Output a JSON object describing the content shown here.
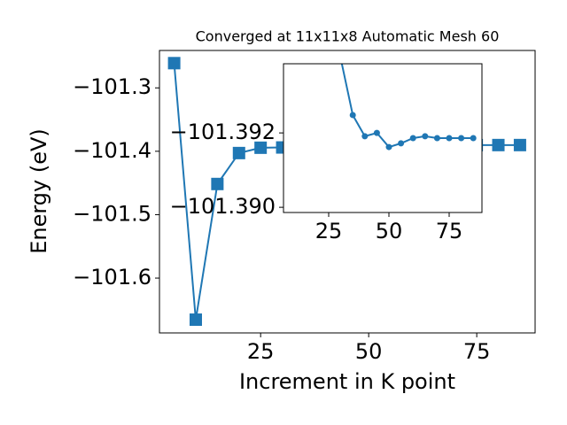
{
  "chart_data": [
    {
      "type": "line",
      "title": "Converged at 11x11x8 Automatic Mesh 60",
      "xlabel": "Increment in K point",
      "ylabel": "Energy (eV)",
      "x": [
        5,
        10,
        15,
        20,
        25,
        30,
        35,
        40,
        45,
        50,
        55,
        60,
        65,
        70,
        75,
        80,
        85
      ],
      "series": [
        {
          "color": "#1f77b4",
          "marker": "square",
          "values": [
            -101.261,
            -101.6656,
            -101.4516,
            -101.4028,
            -101.3944,
            -101.394,
            -101.392,
            -101.391,
            -101.391,
            -101.391,
            -101.391,
            -101.3905,
            -101.3905,
            -101.3903,
            -101.3903,
            -101.3902,
            -101.3902
          ]
        }
      ],
      "xlim": [
        1.6,
        88.5
      ],
      "ylim": [
        -101.6865,
        -101.241
      ],
      "xticks": [
        25,
        50,
        75
      ],
      "yticks": [
        {
          "value": -101.6,
          "label": "−101.6"
        },
        {
          "value": -101.5,
          "label": "−101.5"
        },
        {
          "value": -101.4,
          "label": "−101.4"
        },
        {
          "value": -101.3,
          "label": "−101.3"
        }
      ]
    },
    {
      "type": "line",
      "x": [
        30,
        35,
        40,
        45,
        50,
        55,
        60,
        65,
        70,
        75,
        80,
        85
      ],
      "series": [
        {
          "color": "#1f77b4",
          "marker": "circle",
          "values": [
            -101.394,
            -101.39248,
            -101.39191,
            -101.392,
            -101.39162,
            -101.39172,
            -101.39186,
            -101.39191,
            -101.39186,
            -101.39186,
            -101.39186,
            -101.39186
          ]
        }
      ],
      "xlim": [
        6.25,
        88.6
      ],
      "ylim": [
        -101.38986,
        -101.39386
      ],
      "xticks": [
        25,
        50,
        75
      ],
      "yticks": [
        {
          "value": -101.392,
          "label": "−101.392"
        },
        {
          "value": -101.39,
          "label": "−101.390"
        }
      ]
    }
  ]
}
